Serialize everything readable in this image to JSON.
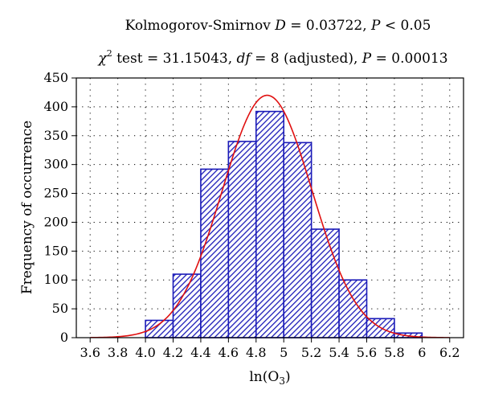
{
  "chart_data": {
    "type": "bar",
    "title_line1": {
      "prefix": "Kolmogorov-Smirnov ",
      "D_symbol": "D",
      "D_text": " = 0.03722, ",
      "P_symbol": "P",
      "P_text": " < 0.05"
    },
    "title_line2": {
      "chi_symbol": "χ",
      "chi_exp": "2",
      "test_text": " test = 31.15043, ",
      "df_symbol": "df",
      "df_text": " = 8 (adjusted), ",
      "P_symbol": "P",
      "P_text": " = 0.00013"
    },
    "xlabel": {
      "prefix": "ln(O",
      "subscript": "3",
      "suffix": ")"
    },
    "ylabel": "Frequency of occurrence",
    "xlim": [
      3.5,
      6.3
    ],
    "ylim": [
      0,
      450
    ],
    "x_ticks": [
      3.6,
      3.8,
      4.0,
      4.2,
      4.4,
      4.6,
      4.8,
      5.0,
      5.2,
      5.4,
      5.6,
      5.8,
      6.0,
      6.2
    ],
    "x_tick_labels": [
      "3.6",
      "3.8",
      "4.0",
      "4.2",
      "4.4",
      "4.6",
      "4.8",
      "5",
      "5.2",
      "5.4",
      "5.6",
      "5.8",
      "6",
      "6.2"
    ],
    "y_ticks": [
      0,
      50,
      100,
      150,
      200,
      250,
      300,
      350,
      400,
      450
    ],
    "y_tick_labels": [
      "0",
      "50",
      "100",
      "150",
      "200",
      "250",
      "300",
      "350",
      "400",
      "450"
    ],
    "grid": true,
    "bins": [
      {
        "x0": 4.0,
        "x1": 4.2,
        "value": 30
      },
      {
        "x0": 4.2,
        "x1": 4.4,
        "value": 110
      },
      {
        "x0": 4.4,
        "x1": 4.6,
        "value": 292
      },
      {
        "x0": 4.6,
        "x1": 4.8,
        "value": 340
      },
      {
        "x0": 4.8,
        "x1": 5.0,
        "value": 392
      },
      {
        "x0": 5.0,
        "x1": 5.2,
        "value": 338
      },
      {
        "x0": 5.2,
        "x1": 5.4,
        "value": 188
      },
      {
        "x0": 5.4,
        "x1": 5.6,
        "value": 100
      },
      {
        "x0": 5.6,
        "x1": 5.8,
        "value": 33
      },
      {
        "x0": 5.8,
        "x1": 6.0,
        "value": 8
      }
    ],
    "normal_fit": {
      "mean": 4.88,
      "sd": 0.325,
      "peak": 420,
      "x_range": [
        3.6,
        6.2
      ]
    },
    "colors": {
      "bar_stroke": "#1a1ab8",
      "hatch": "#1a1ab8",
      "curve": "#e01010",
      "grid": "#000000"
    }
  }
}
